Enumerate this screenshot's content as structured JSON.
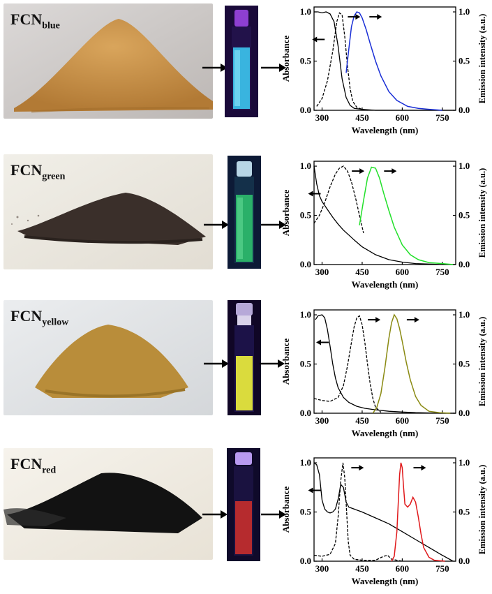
{
  "panels": [
    {
      "id": "blue",
      "label_main": "FCN",
      "label_sub": "blue",
      "emission_color": "#1a2fd6",
      "glow_color": "#3fd9ff"
    },
    {
      "id": "green",
      "label_main": "FCN",
      "label_sub": "green",
      "emission_color": "#22e02a",
      "glow_color": "#2dd36b"
    },
    {
      "id": "yellow",
      "label_main": "FCN",
      "label_sub": "yellow",
      "emission_color": "#8a8a12",
      "glow_color": "#e8f23a"
    },
    {
      "id": "red",
      "label_main": "FCN",
      "label_sub": "red",
      "emission_color": "#e0191b",
      "glow_color": "#d2302c"
    }
  ],
  "chart_data": [
    {
      "type": "line",
      "panel": "blue",
      "xlabel": "Wavelength (nm)",
      "ylabel": "Absorbance",
      "y2label": "Emission intensity (a.u.)",
      "xlim": [
        270,
        800
      ],
      "ylim": [
        0,
        1.05
      ],
      "xticks": [
        300,
        450,
        600,
        750
      ],
      "yticks": [
        0.0,
        0.5,
        1.0
      ],
      "xticklabels": [
        "300",
        "450",
        "600",
        "750"
      ],
      "yticklabels": [
        "0.0",
        "0.5",
        "1.0"
      ],
      "series": [
        {
          "style": "solid-black",
          "x": [
            270,
            285,
            300,
            315,
            330,
            345,
            360,
            375,
            390,
            405,
            420,
            450,
            500,
            600,
            700,
            800
          ],
          "y": [
            1.0,
            1.0,
            0.99,
            1.0,
            0.98,
            0.9,
            0.65,
            0.32,
            0.13,
            0.05,
            0.02,
            0.01,
            0.0,
            0.0,
            0.0,
            0.0
          ]
        },
        {
          "style": "dashed",
          "x": [
            280,
            300,
            320,
            340,
            355,
            365,
            375,
            385,
            395,
            405,
            415,
            430,
            450,
            470
          ],
          "y": [
            0.04,
            0.12,
            0.3,
            0.6,
            0.9,
            0.99,
            0.97,
            0.75,
            0.45,
            0.22,
            0.09,
            0.03,
            0.01,
            0.0
          ]
        },
        {
          "style": "solid-emission",
          "x": [
            390,
            400,
            410,
            420,
            430,
            440,
            450,
            465,
            480,
            500,
            520,
            550,
            580,
            620,
            660,
            700,
            750
          ],
          "y": [
            0.38,
            0.62,
            0.85,
            0.96,
            1.0,
            0.99,
            0.94,
            0.82,
            0.68,
            0.5,
            0.35,
            0.19,
            0.1,
            0.04,
            0.02,
            0.01,
            0.0
          ]
        }
      ],
      "arrows": [
        "left",
        "right",
        "right"
      ]
    },
    {
      "type": "line",
      "panel": "green",
      "xlabel": "Wavelength (nm)",
      "ylabel": "Absorbance",
      "y2label": "Emission intensity (a.u.)",
      "xlim": [
        270,
        800
      ],
      "ylim": [
        0,
        1.05
      ],
      "xticks": [
        300,
        450,
        600,
        750
      ],
      "yticks": [
        0.0,
        0.5,
        1.0
      ],
      "xticklabels": [
        "300",
        "450",
        "600",
        "750"
      ],
      "yticklabels": [
        "0.0",
        "0.5",
        "1.0"
      ],
      "series": [
        {
          "style": "solid-black",
          "x": [
            270,
            280,
            290,
            300,
            320,
            340,
            360,
            380,
            400,
            420,
            450,
            500,
            550,
            600,
            650,
            700,
            750,
            800
          ],
          "y": [
            1.0,
            0.82,
            0.7,
            0.64,
            0.56,
            0.48,
            0.41,
            0.35,
            0.3,
            0.25,
            0.18,
            0.1,
            0.05,
            0.025,
            0.01,
            0.005,
            0.0,
            0.0
          ]
        },
        {
          "style": "dashed",
          "x": [
            270,
            290,
            310,
            330,
            350,
            365,
            380,
            395,
            410,
            425,
            440,
            455
          ],
          "y": [
            0.42,
            0.5,
            0.63,
            0.79,
            0.92,
            0.98,
            1.0,
            0.95,
            0.84,
            0.68,
            0.5,
            0.32
          ]
        },
        {
          "style": "solid-emission",
          "x": [
            440,
            455,
            470,
            485,
            500,
            515,
            530,
            550,
            570,
            600,
            630,
            660,
            700,
            750,
            790
          ],
          "y": [
            0.4,
            0.65,
            0.88,
            0.99,
            0.98,
            0.88,
            0.73,
            0.55,
            0.38,
            0.2,
            0.1,
            0.05,
            0.02,
            0.01,
            0.0
          ]
        }
      ],
      "arrows": [
        "left",
        "right",
        "right"
      ]
    },
    {
      "type": "line",
      "panel": "yellow",
      "xlabel": "Wavelength (nm)",
      "ylabel": "Absorbance",
      "y2label": "Emission intensity (a.u.)",
      "xlim": [
        270,
        800
      ],
      "ylim": [
        0,
        1.05
      ],
      "xticks": [
        300,
        450,
        600,
        750
      ],
      "yticks": [
        0.0,
        0.5,
        1.0
      ],
      "xticklabels": [
        "300",
        "450",
        "600",
        "750"
      ],
      "yticklabels": [
        "0.0",
        "0.5",
        "1.0"
      ],
      "series": [
        {
          "style": "solid-black",
          "x": [
            275,
            285,
            300,
            310,
            320,
            330,
            340,
            350,
            360,
            380,
            400,
            430,
            460,
            500,
            550,
            600,
            650,
            700,
            750,
            800
          ],
          "y": [
            0.95,
            0.99,
            1.0,
            0.97,
            0.85,
            0.68,
            0.5,
            0.36,
            0.26,
            0.16,
            0.11,
            0.07,
            0.05,
            0.035,
            0.02,
            0.012,
            0.006,
            0.003,
            0.0,
            0.0
          ]
        },
        {
          "style": "dashed",
          "x": [
            270,
            300,
            330,
            360,
            380,
            395,
            410,
            420,
            430,
            440,
            450,
            460,
            470,
            480,
            490,
            500,
            520
          ],
          "y": [
            0.15,
            0.13,
            0.12,
            0.16,
            0.28,
            0.48,
            0.72,
            0.88,
            0.97,
            0.99,
            0.9,
            0.72,
            0.5,
            0.3,
            0.15,
            0.06,
            0.01
          ]
        },
        {
          "style": "solid-emission",
          "x": [
            490,
            505,
            520,
            535,
            550,
            560,
            570,
            580,
            590,
            600,
            615,
            630,
            650,
            670,
            700,
            740,
            780
          ],
          "y": [
            0.0,
            0.06,
            0.2,
            0.46,
            0.76,
            0.92,
            1.0,
            0.96,
            0.86,
            0.73,
            0.52,
            0.34,
            0.17,
            0.08,
            0.02,
            0.005,
            0.0
          ]
        }
      ],
      "arrows": [
        "left",
        "right",
        "right"
      ]
    },
    {
      "type": "line",
      "panel": "red",
      "xlabel": "Wavelength (nm)",
      "ylabel": "Absorbance",
      "y2label": "Emission intensity (a.u.)",
      "xlim": [
        270,
        800
      ],
      "ylim": [
        0,
        1.05
      ],
      "xticks": [
        300,
        450,
        600,
        750
      ],
      "yticks": [
        0.0,
        0.5,
        1.0
      ],
      "xticklabels": [
        "300",
        "450",
        "600",
        "750"
      ],
      "yticklabels": [
        "0.0",
        "0.5",
        "1.0"
      ],
      "series": [
        {
          "style": "solid-black",
          "x": [
            270,
            280,
            290,
            300,
            310,
            320,
            330,
            340,
            350,
            360,
            370,
            380,
            390,
            400,
            450,
            500,
            550,
            600,
            650,
            700,
            750,
            790
          ],
          "y": [
            1.0,
            0.98,
            0.88,
            0.62,
            0.53,
            0.5,
            0.49,
            0.5,
            0.53,
            0.63,
            0.78,
            0.75,
            0.6,
            0.55,
            0.5,
            0.44,
            0.38,
            0.3,
            0.22,
            0.14,
            0.06,
            0.0
          ]
        },
        {
          "style": "dashed",
          "x": [
            270,
            300,
            330,
            350,
            360,
            370,
            378,
            385,
            392,
            398,
            405,
            420,
            450,
            500,
            530,
            545,
            560,
            600
          ],
          "y": [
            0.06,
            0.05,
            0.07,
            0.18,
            0.45,
            0.82,
            1.0,
            0.85,
            0.5,
            0.2,
            0.06,
            0.02,
            0.01,
            0.01,
            0.05,
            0.06,
            0.02,
            0.0
          ]
        },
        {
          "style": "solid-emission",
          "x": [
            560,
            570,
            580,
            590,
            595,
            600,
            605,
            610,
            620,
            630,
            640,
            650,
            660,
            670,
            680,
            700,
            720,
            760
          ],
          "y": [
            0.0,
            0.05,
            0.3,
            0.88,
            1.0,
            0.95,
            0.75,
            0.58,
            0.55,
            0.58,
            0.65,
            0.6,
            0.45,
            0.28,
            0.14,
            0.04,
            0.01,
            0.0
          ]
        }
      ],
      "arrows": [
        "left",
        "right",
        "right"
      ]
    }
  ]
}
